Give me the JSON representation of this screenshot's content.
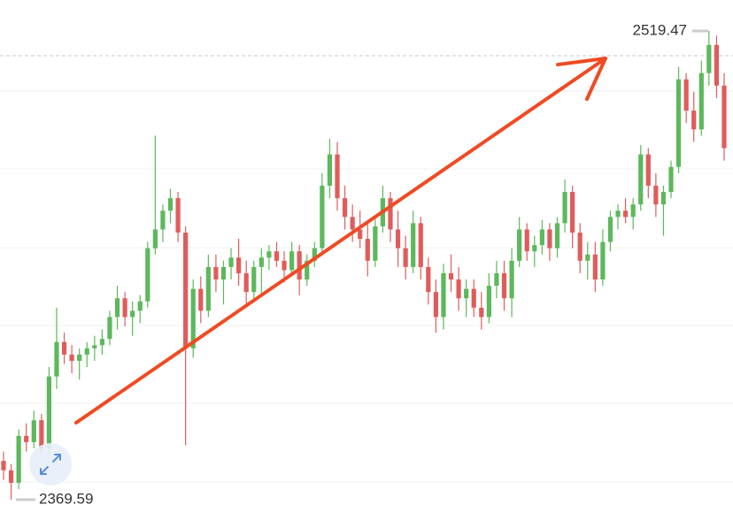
{
  "chart_data": {
    "type": "candlestick",
    "up_color": "#5cb85c",
    "down_color": "#e05c5c",
    "ylim": [
      2363.1,
      2529.37
    ],
    "open": [
      2382,
      2379,
      2375,
      2390,
      2388,
      2395,
      2386,
      2409,
      2420,
      2416,
      2414,
      2416,
      2418,
      2419,
      2421,
      2428,
      2434,
      2428,
      2430,
      2433,
      2450,
      2456,
      2462,
      2466,
      2455,
      2418,
      2437,
      2430,
      2444,
      2440,
      2444,
      2447,
      2442,
      2436,
      2444,
      2447,
      2449,
      2446,
      2443,
      2449,
      2440,
      2446,
      2450,
      2470,
      2480,
      2466,
      2460,
      2456,
      2453,
      2446,
      2457,
      2466,
      2456,
      2450,
      2444,
      2458,
      2444,
      2436,
      2428,
      2442,
      2440,
      2434,
      2437,
      2431,
      2428,
      2438,
      2442,
      2434,
      2446,
      2456,
      2449,
      2451,
      2456,
      2450,
      2458,
      2468,
      2455,
      2446,
      2448,
      2440,
      2452,
      2460,
      2462,
      2460,
      2464,
      2480,
      2470,
      2464,
      2468,
      2476,
      2504,
      2494,
      2488,
      2506,
      2515,
      2502
    ],
    "high": [
      2385,
      2381,
      2392,
      2394,
      2398,
      2397,
      2412,
      2431,
      2423,
      2419,
      2418,
      2420,
      2422,
      2424,
      2430,
      2438,
      2436,
      2433,
      2435,
      2452,
      2486,
      2464,
      2469,
      2468,
      2457,
      2440,
      2441,
      2448,
      2448,
      2446,
      2450,
      2453,
      2446,
      2446,
      2450,
      2451,
      2452,
      2449,
      2452,
      2451,
      2448,
      2452,
      2474,
      2485,
      2484,
      2470,
      2464,
      2462,
      2458,
      2460,
      2470,
      2468,
      2462,
      2454,
      2462,
      2460,
      2447,
      2440,
      2445,
      2448,
      2444,
      2440,
      2440,
      2436,
      2442,
      2446,
      2446,
      2450,
      2460,
      2458,
      2454,
      2459,
      2458,
      2460,
      2472,
      2470,
      2458,
      2452,
      2452,
      2456,
      2462,
      2464,
      2466,
      2466,
      2483,
      2482,
      2474,
      2470,
      2478,
      2508,
      2506,
      2500,
      2510,
      2519.47,
      2518,
      2506
    ],
    "low": [
      2376,
      2369.59,
      2373,
      2385,
      2386,
      2384,
      2384,
      2405,
      2413,
      2410,
      2408,
      2412,
      2414,
      2416,
      2419,
      2424,
      2425,
      2422,
      2426,
      2431,
      2448,
      2452,
      2458,
      2452,
      2387,
      2415,
      2426,
      2428,
      2436,
      2432,
      2440,
      2438,
      2432,
      2434,
      2435,
      2443,
      2444,
      2439,
      2441,
      2435,
      2438,
      2444,
      2448,
      2466,
      2462,
      2456,
      2452,
      2450,
      2441,
      2444,
      2455,
      2452,
      2444,
      2440,
      2442,
      2440,
      2432,
      2423,
      2424,
      2436,
      2430,
      2428,
      2428,
      2424,
      2426,
      2434,
      2430,
      2428,
      2444,
      2446,
      2444,
      2448,
      2446,
      2447,
      2455,
      2450,
      2442,
      2440,
      2436,
      2438,
      2449,
      2456,
      2458,
      2456,
      2462,
      2466,
      2460,
      2454,
      2466,
      2474,
      2490,
      2484,
      2486,
      2502,
      2498,
      2478
    ],
    "close": [
      2379,
      2375,
      2390,
      2388,
      2395,
      2386,
      2409,
      2420,
      2416,
      2414,
      2416,
      2418,
      2419,
      2421,
      2428,
      2434,
      2428,
      2430,
      2433,
      2450,
      2456,
      2462,
      2466,
      2455,
      2418,
      2437,
      2430,
      2444,
      2440,
      2444,
      2447,
      2442,
      2436,
      2444,
      2447,
      2449,
      2446,
      2443,
      2449,
      2440,
      2446,
      2450,
      2470,
      2480,
      2466,
      2460,
      2456,
      2453,
      2446,
      2457,
      2466,
      2456,
      2450,
      2444,
      2458,
      2444,
      2436,
      2428,
      2442,
      2440,
      2434,
      2437,
      2431,
      2428,
      2438,
      2442,
      2434,
      2446,
      2456,
      2449,
      2451,
      2456,
      2450,
      2458,
      2468,
      2455,
      2446,
      2448,
      2440,
      2452,
      2460,
      2462,
      2460,
      2464,
      2480,
      2470,
      2464,
      2468,
      2476,
      2504,
      2494,
      2488,
      2506,
      2515,
      2502,
      2482
    ]
  }
}
